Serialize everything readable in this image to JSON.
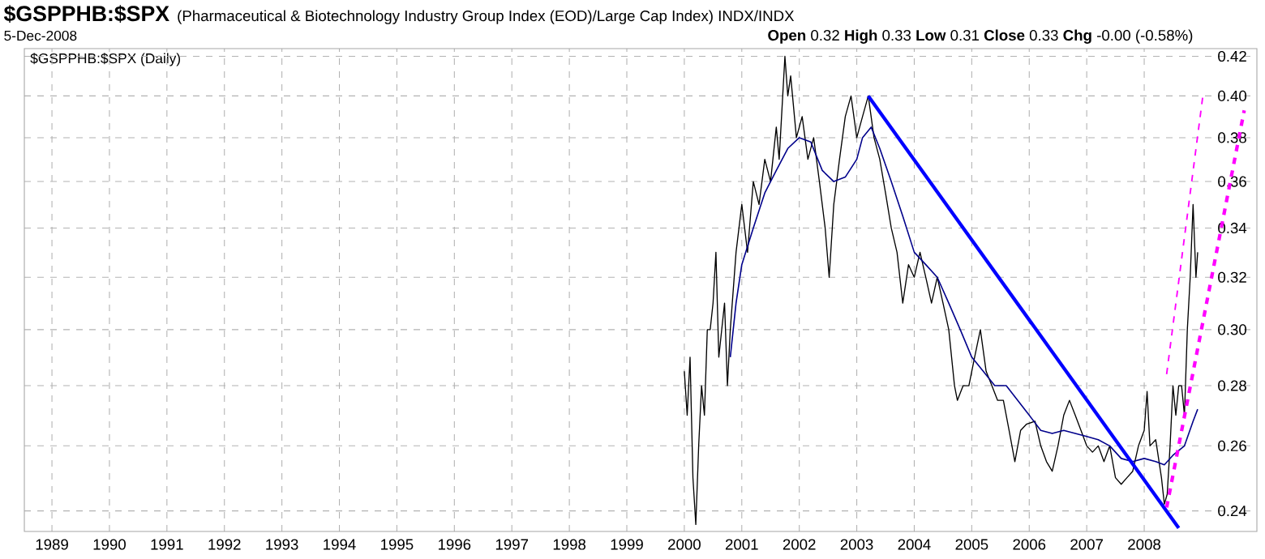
{
  "chart_data": {
    "type": "line",
    "title": "$GSPPHB:$SPX",
    "subtitle": "(Pharmaceutical & Biotechnology Industry Group Index (EOD)/Large Cap Index)  INDX/INDX",
    "annotations": [
      "$GSPPHB:$SPX (Daily)",
      "5-Dec-2008",
      "**Open** 0.32  **High** 0.33  **Low** 0.31  **Close** 0.33  **Chg** -0.00 (-0.58%)"
    ],
    "log": "y",
    "grid": true,
    "marker": "none",
    "xlim": [
      1988.52,
      2009.96
    ],
    "ylim": [
      0.234,
      0.424
    ],
    "xticks": [
      1989,
      1990,
      1991,
      1992,
      1993,
      1994,
      1995,
      1996,
      1997,
      1998,
      1999,
      2000,
      2001,
      2002,
      2003,
      2004,
      2005,
      2006,
      2007,
      2008
    ],
    "yticks": [
      0.24,
      0.26,
      0.28,
      {
        "value": 0.3,
        "label": "0.30"
      },
      0.32,
      0.34,
      0.36,
      0.38,
      {
        "value": 0.4,
        "label": "0.40"
      },
      0.42
    ],
    "series": [
      {
        "color": "#000000",
        "line_style": "solid",
        "x": [
          2000.0,
          2000.05,
          2000.1,
          2000.15,
          2000.2,
          2000.25,
          2000.3,
          2000.35,
          2000.4,
          2000.45,
          2000.5,
          2000.55,
          2000.6,
          2000.7,
          2000.75,
          2000.8,
          2000.9,
          2001.0,
          2001.1,
          2001.2,
          2001.3,
          2001.4,
          2001.5,
          2001.6,
          2001.65,
          2001.75,
          2001.8,
          2001.85,
          2001.95,
          2002.05,
          2002.15,
          2002.25,
          2002.35,
          2002.45,
          2002.52,
          2002.6,
          2002.7,
          2002.8,
          2002.9,
          2003.0,
          2003.1,
          2003.2,
          2003.3,
          2003.4,
          2003.5,
          2003.6,
          2003.7,
          2003.8,
          2003.9,
          2004.0,
          2004.1,
          2004.2,
          2004.3,
          2004.4,
          2004.5,
          2004.6,
          2004.7,
          2004.75,
          2004.85,
          2004.95,
          2005.05,
          2005.15,
          2005.25,
          2005.35,
          2005.45,
          2005.55,
          2005.65,
          2005.75,
          2005.85,
          2005.95,
          2006.1,
          2006.2,
          2006.3,
          2006.4,
          2006.5,
          2006.6,
          2006.7,
          2006.8,
          2006.9,
          2007.0,
          2007.1,
          2007.2,
          2007.3,
          2007.4,
          2007.5,
          2007.6,
          2007.7,
          2007.8,
          2007.9,
          2008.0,
          2008.05,
          2008.1,
          2008.2,
          2008.3,
          2008.35,
          2008.4,
          2008.45,
          2008.5,
          2008.55,
          2008.6,
          2008.65,
          2008.7,
          2008.75,
          2008.8,
          2008.85,
          2008.9,
          2008.93
        ],
        "values": [
          0.285,
          0.27,
          0.29,
          0.25,
          0.236,
          0.26,
          0.28,
          0.27,
          0.3,
          0.3,
          0.31,
          0.33,
          0.29,
          0.31,
          0.28,
          0.3,
          0.33,
          0.35,
          0.33,
          0.36,
          0.35,
          0.37,
          0.36,
          0.385,
          0.37,
          0.42,
          0.4,
          0.41,
          0.38,
          0.39,
          0.37,
          0.38,
          0.36,
          0.34,
          0.32,
          0.35,
          0.37,
          0.39,
          0.4,
          0.38,
          0.39,
          0.4,
          0.38,
          0.37,
          0.355,
          0.34,
          0.33,
          0.31,
          0.325,
          0.32,
          0.33,
          0.32,
          0.31,
          0.32,
          0.31,
          0.3,
          0.28,
          0.275,
          0.28,
          0.28,
          0.29,
          0.3,
          0.285,
          0.28,
          0.275,
          0.275,
          0.265,
          0.255,
          0.265,
          0.267,
          0.268,
          0.26,
          0.255,
          0.252,
          0.26,
          0.27,
          0.275,
          0.27,
          0.265,
          0.26,
          0.258,
          0.26,
          0.255,
          0.26,
          0.25,
          0.248,
          0.25,
          0.252,
          0.26,
          0.265,
          0.278,
          0.26,
          0.262,
          0.25,
          0.242,
          0.245,
          0.26,
          0.28,
          0.27,
          0.28,
          0.28,
          0.27,
          0.3,
          0.32,
          0.35,
          0.32,
          0.33
        ]
      },
      {
        "color": "#00008b",
        "line_style": "solid",
        "x": [
          2000.8,
          2000.9,
          2001.0,
          2001.2,
          2001.4,
          2001.6,
          2001.8,
          2002.0,
          2002.2,
          2002.4,
          2002.6,
          2002.8,
          2003.0,
          2003.1,
          2003.25,
          2003.4,
          2003.6,
          2003.8,
          2004.0,
          2004.2,
          2004.4,
          2004.6,
          2004.8,
          2005.0,
          2005.2,
          2005.4,
          2005.6,
          2005.8,
          2006.0,
          2006.2,
          2006.4,
          2006.6,
          2006.8,
          2007.0,
          2007.2,
          2007.4,
          2007.6,
          2007.8,
          2008.0,
          2008.2,
          2008.35,
          2008.5,
          2008.7,
          2008.85,
          2008.93
        ],
        "values": [
          0.29,
          0.31,
          0.325,
          0.34,
          0.355,
          0.365,
          0.375,
          0.38,
          0.378,
          0.365,
          0.36,
          0.362,
          0.37,
          0.38,
          0.385,
          0.375,
          0.36,
          0.345,
          0.33,
          0.325,
          0.32,
          0.31,
          0.3,
          0.29,
          0.285,
          0.28,
          0.28,
          0.275,
          0.27,
          0.265,
          0.264,
          0.265,
          0.264,
          0.263,
          0.262,
          0.26,
          0.256,
          0.255,
          0.256,
          0.255,
          0.254,
          0.257,
          0.26,
          0.268,
          0.272
        ]
      },
      {
        "color": "#0000ff",
        "line_style": "solid",
        "x": [
          2003.2,
          2008.6
        ],
        "values": [
          0.4,
          0.235
        ]
      },
      {
        "color": "#ff00ff",
        "line_style": "dashed",
        "x": [
          2008.39,
          2009.02
        ],
        "values": [
          0.284,
          0.4
        ]
      },
      {
        "color": "#ff00ff",
        "line_style": "dashed",
        "x": [
          2008.39,
          2009.74
        ],
        "values": [
          0.241,
          0.393
        ]
      }
    ]
  }
}
